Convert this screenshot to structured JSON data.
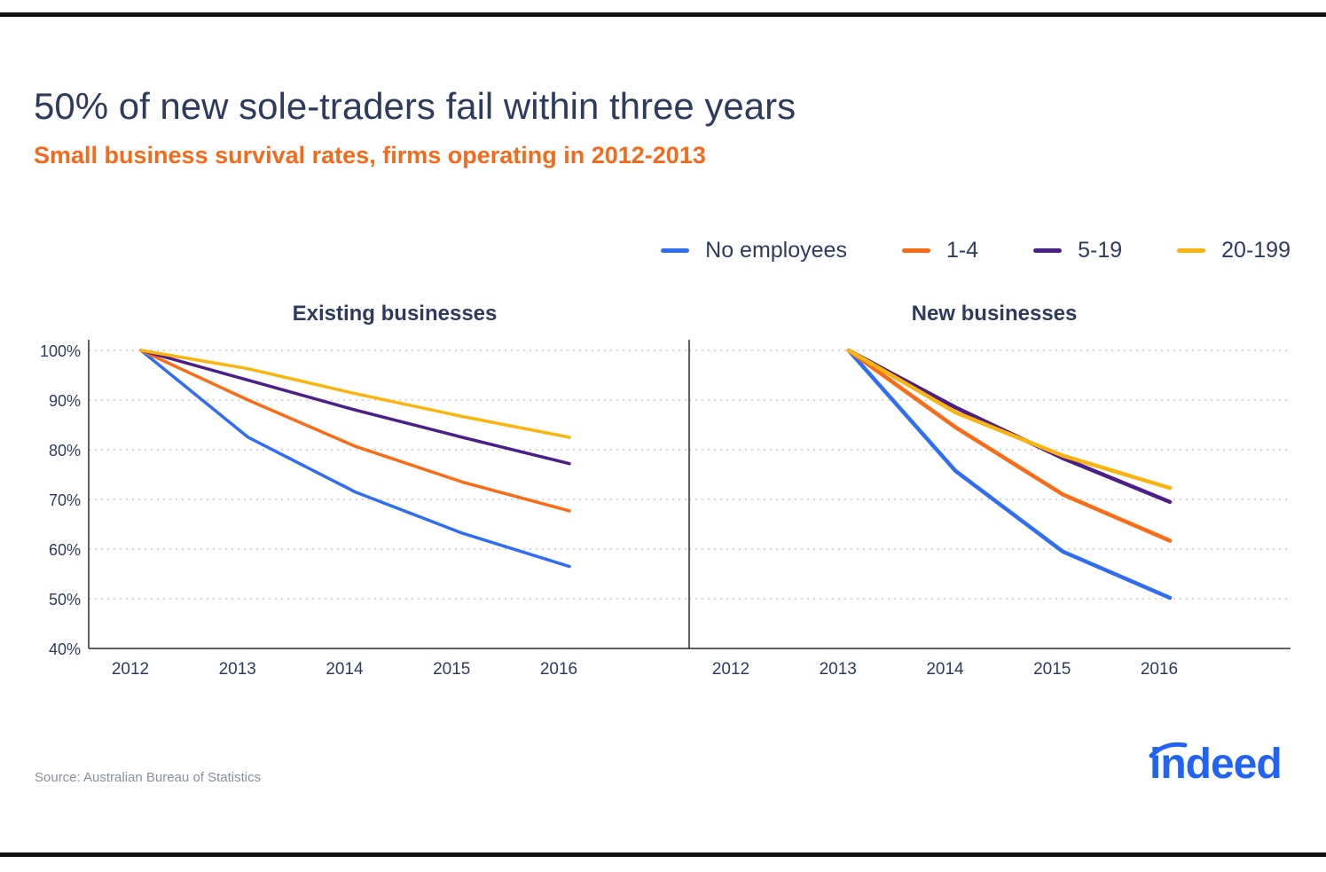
{
  "title": "50% of new sole-traders fail within three years",
  "subtitle": "Small business survival rates, firms operating in 2012-2013",
  "source": "Source: Australian Bureau of Statistics",
  "logo": "indeed",
  "colors": {
    "text": "#2d3b5e",
    "accent": "#f26b1d",
    "brand": "#2164f3"
  },
  "legend": [
    {
      "label": "No employees",
      "color": "#2f6df5"
    },
    {
      "label": "1-4",
      "color": "#fb6a14"
    },
    {
      "label": "5-19",
      "color": "#4b1f87"
    },
    {
      "label": "20-199",
      "color": "#fbb40f"
    }
  ],
  "chart_data": [
    {
      "type": "line",
      "title": "Existing businesses",
      "x": [
        "2012",
        "2013",
        "2014",
        "2015",
        "2016"
      ],
      "y_ticks": [
        "40%",
        "50%",
        "60%",
        "70%",
        "80%",
        "90%",
        "100%"
      ],
      "ylim": [
        40,
        100
      ],
      "grid": true,
      "series": [
        {
          "name": "No employees",
          "color": "#2f6df5",
          "values": [
            100,
            82.5,
            71.5,
            63.2,
            56.5
          ]
        },
        {
          "name": "1-4",
          "color": "#fb6a14",
          "values": [
            100,
            90,
            80.7,
            73.5,
            67.7
          ]
        },
        {
          "name": "5-19",
          "color": "#4b1f87",
          "values": [
            100,
            94,
            88,
            82.5,
            77.2
          ]
        },
        {
          "name": "20-199",
          "color": "#fbb40f",
          "values": [
            100,
            96.3,
            91.3,
            86.7,
            82.5
          ]
        }
      ]
    },
    {
      "type": "line",
      "title": "New businesses",
      "x": [
        "2012",
        "2013",
        "2014",
        "2015",
        "2016"
      ],
      "ylim": [
        40,
        100
      ],
      "grid": true,
      "series": [
        {
          "name": "No employees",
          "color": "#2f6df5",
          "values": [
            null,
            100,
            75.7,
            59.5,
            50.2
          ]
        },
        {
          "name": "1-4",
          "color": "#fb6a14",
          "values": [
            null,
            100,
            84.5,
            71,
            61.7
          ]
        },
        {
          "name": "5-19",
          "color": "#4b1f87",
          "values": [
            null,
            100,
            88.5,
            78.3,
            69.5
          ]
        },
        {
          "name": "20-199",
          "color": "#fbb40f",
          "values": [
            null,
            100,
            87.5,
            78.8,
            72.3
          ]
        }
      ]
    }
  ]
}
